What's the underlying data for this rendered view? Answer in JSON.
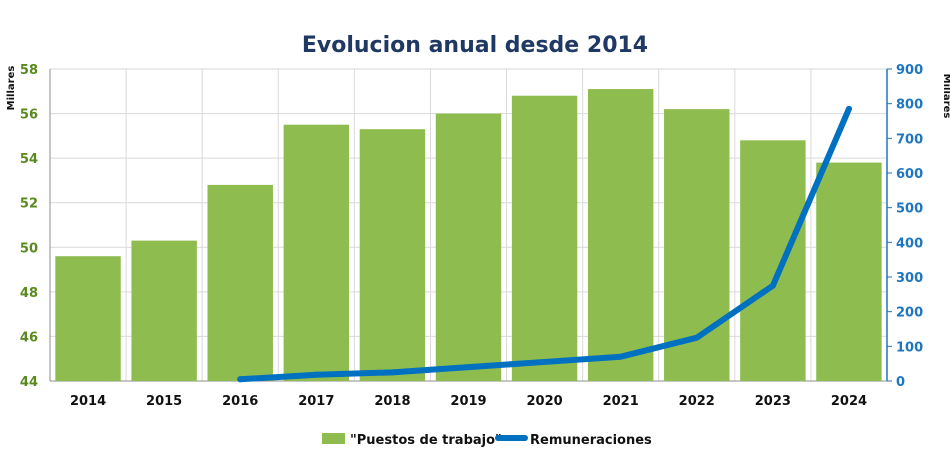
{
  "chart_data": {
    "type": "bar",
    "title": "Evolucion anual desde 2014",
    "categories": [
      "2014",
      "2015",
      "2016",
      "2017",
      "2018",
      "2019",
      "2020",
      "2021",
      "2022",
      "2023",
      "2024"
    ],
    "series": [
      {
        "name": "\"Puestos de trabajo\"",
        "type": "bar",
        "axis": "left",
        "color": "#8fbc4f",
        "values": [
          49.6,
          50.3,
          52.8,
          55.5,
          55.3,
          56.0,
          56.8,
          57.1,
          56.2,
          54.8,
          53.8
        ]
      },
      {
        "name": "Remuneraciones",
        "type": "line",
        "axis": "right",
        "color": "#0070c0",
        "values": [
          null,
          null,
          5,
          18,
          25,
          40,
          55,
          70,
          125,
          275,
          785
        ]
      }
    ],
    "y_left": {
      "label": "Millares",
      "min": 44,
      "max": 58,
      "ticks": [
        44,
        46,
        48,
        50,
        52,
        54,
        56,
        58
      ]
    },
    "y_right": {
      "label": "Millares",
      "min": 0,
      "max": 900,
      "ticks": [
        0,
        100,
        200,
        300,
        400,
        500,
        600,
        700,
        800,
        900
      ]
    },
    "grid": true,
    "legend_position": "bottom"
  },
  "colors": {
    "bar": "#8fbc4f",
    "line": "#0070c0",
    "title": "#1f3864",
    "left_axis_text": "#5a8a1f",
    "right_axis_text": "#1f76c0",
    "grid": "#d9d9d9"
  }
}
